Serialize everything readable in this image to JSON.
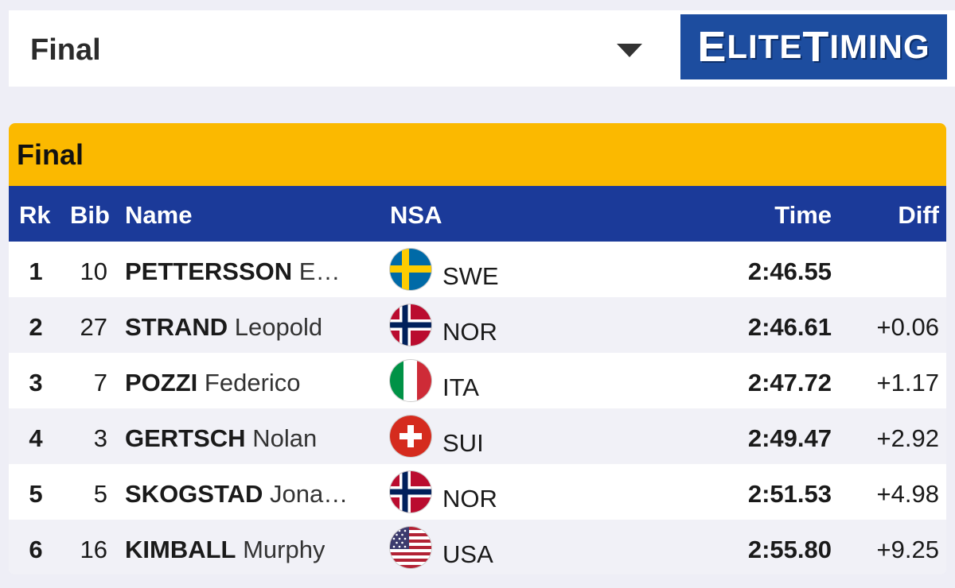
{
  "selector": {
    "value": "Final"
  },
  "logo": {
    "text_e": "E",
    "text_lite": "LITE",
    "text_t": "T",
    "text_iming": "IMING"
  },
  "results": {
    "title": "Final",
    "headers": {
      "rk": "Rk",
      "bib": "Bib",
      "name": "Name",
      "nsa": "NSA",
      "time": "Time",
      "diff": "Diff"
    },
    "rows": [
      {
        "rk": "1",
        "bib": "10",
        "surname": "PETTERSSON",
        "given": "E…",
        "flag": "sweden-flag-icon",
        "nsa": "SWE",
        "time": "2:46.55",
        "diff": ""
      },
      {
        "rk": "2",
        "bib": "27",
        "surname": "STRAND",
        "given": "Leopold",
        "flag": "norway-flag-icon",
        "nsa": "NOR",
        "time": "2:46.61",
        "diff": "+0.06"
      },
      {
        "rk": "3",
        "bib": "7",
        "surname": "POZZI",
        "given": "Federico",
        "flag": "italy-flag-icon",
        "nsa": "ITA",
        "time": "2:47.72",
        "diff": "+1.17"
      },
      {
        "rk": "4",
        "bib": "3",
        "surname": "GERTSCH",
        "given": "Nolan",
        "flag": "switzerland-flag-icon",
        "nsa": "SUI",
        "time": "2:49.47",
        "diff": "+2.92"
      },
      {
        "rk": "5",
        "bib": "5",
        "surname": "SKOGSTAD",
        "given": "Jona…",
        "flag": "norway-flag-icon",
        "nsa": "NOR",
        "time": "2:51.53",
        "diff": "+4.98"
      },
      {
        "rk": "6",
        "bib": "16",
        "surname": "KIMBALL",
        "given": "Murphy",
        "flag": "usa-flag-icon",
        "nsa": "USA",
        "time": "2:55.80",
        "diff": "+9.25"
      }
    ]
  },
  "colors": {
    "header_gold": "#fbb900",
    "header_blue": "#1b3a99",
    "logo_blue": "#1d4d9f"
  }
}
